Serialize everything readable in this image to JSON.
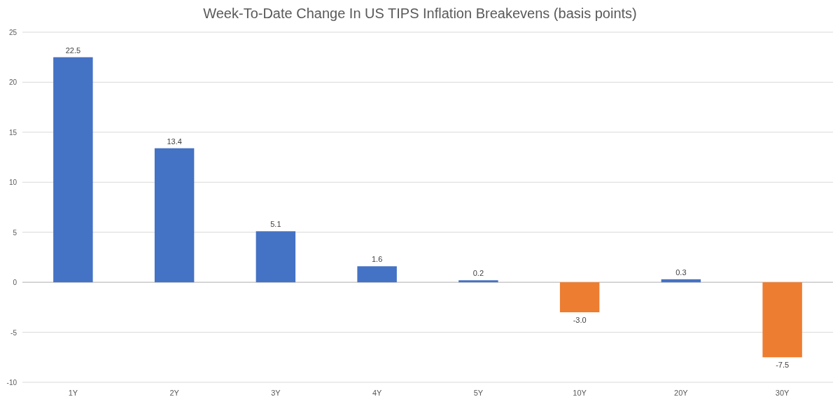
{
  "chart_data": {
    "type": "bar",
    "title": "Week-To-Date Change In US TIPS Inflation Breakevens (basis points)",
    "categories": [
      "1Y",
      "2Y",
      "3Y",
      "4Y",
      "5Y",
      "10Y",
      "20Y",
      "30Y"
    ],
    "values": [
      22.5,
      13.4,
      5.1,
      1.6,
      0.2,
      -3.0,
      0.3,
      -7.5
    ],
    "colors": [
      "#4472c4",
      "#4472c4",
      "#4472c4",
      "#4472c4",
      "#4472c4",
      "#ed7d31",
      "#4472c4",
      "#ed7d31"
    ],
    "value_labels": [
      "22.5",
      "13.4",
      "5.1",
      "1.6",
      "0.2",
      "-3.0",
      "0.3",
      "-7.5"
    ],
    "ylim": [
      -10,
      25
    ],
    "yticks": [
      -10,
      -5,
      0,
      5,
      10,
      15,
      20,
      25
    ],
    "grid": "y"
  }
}
